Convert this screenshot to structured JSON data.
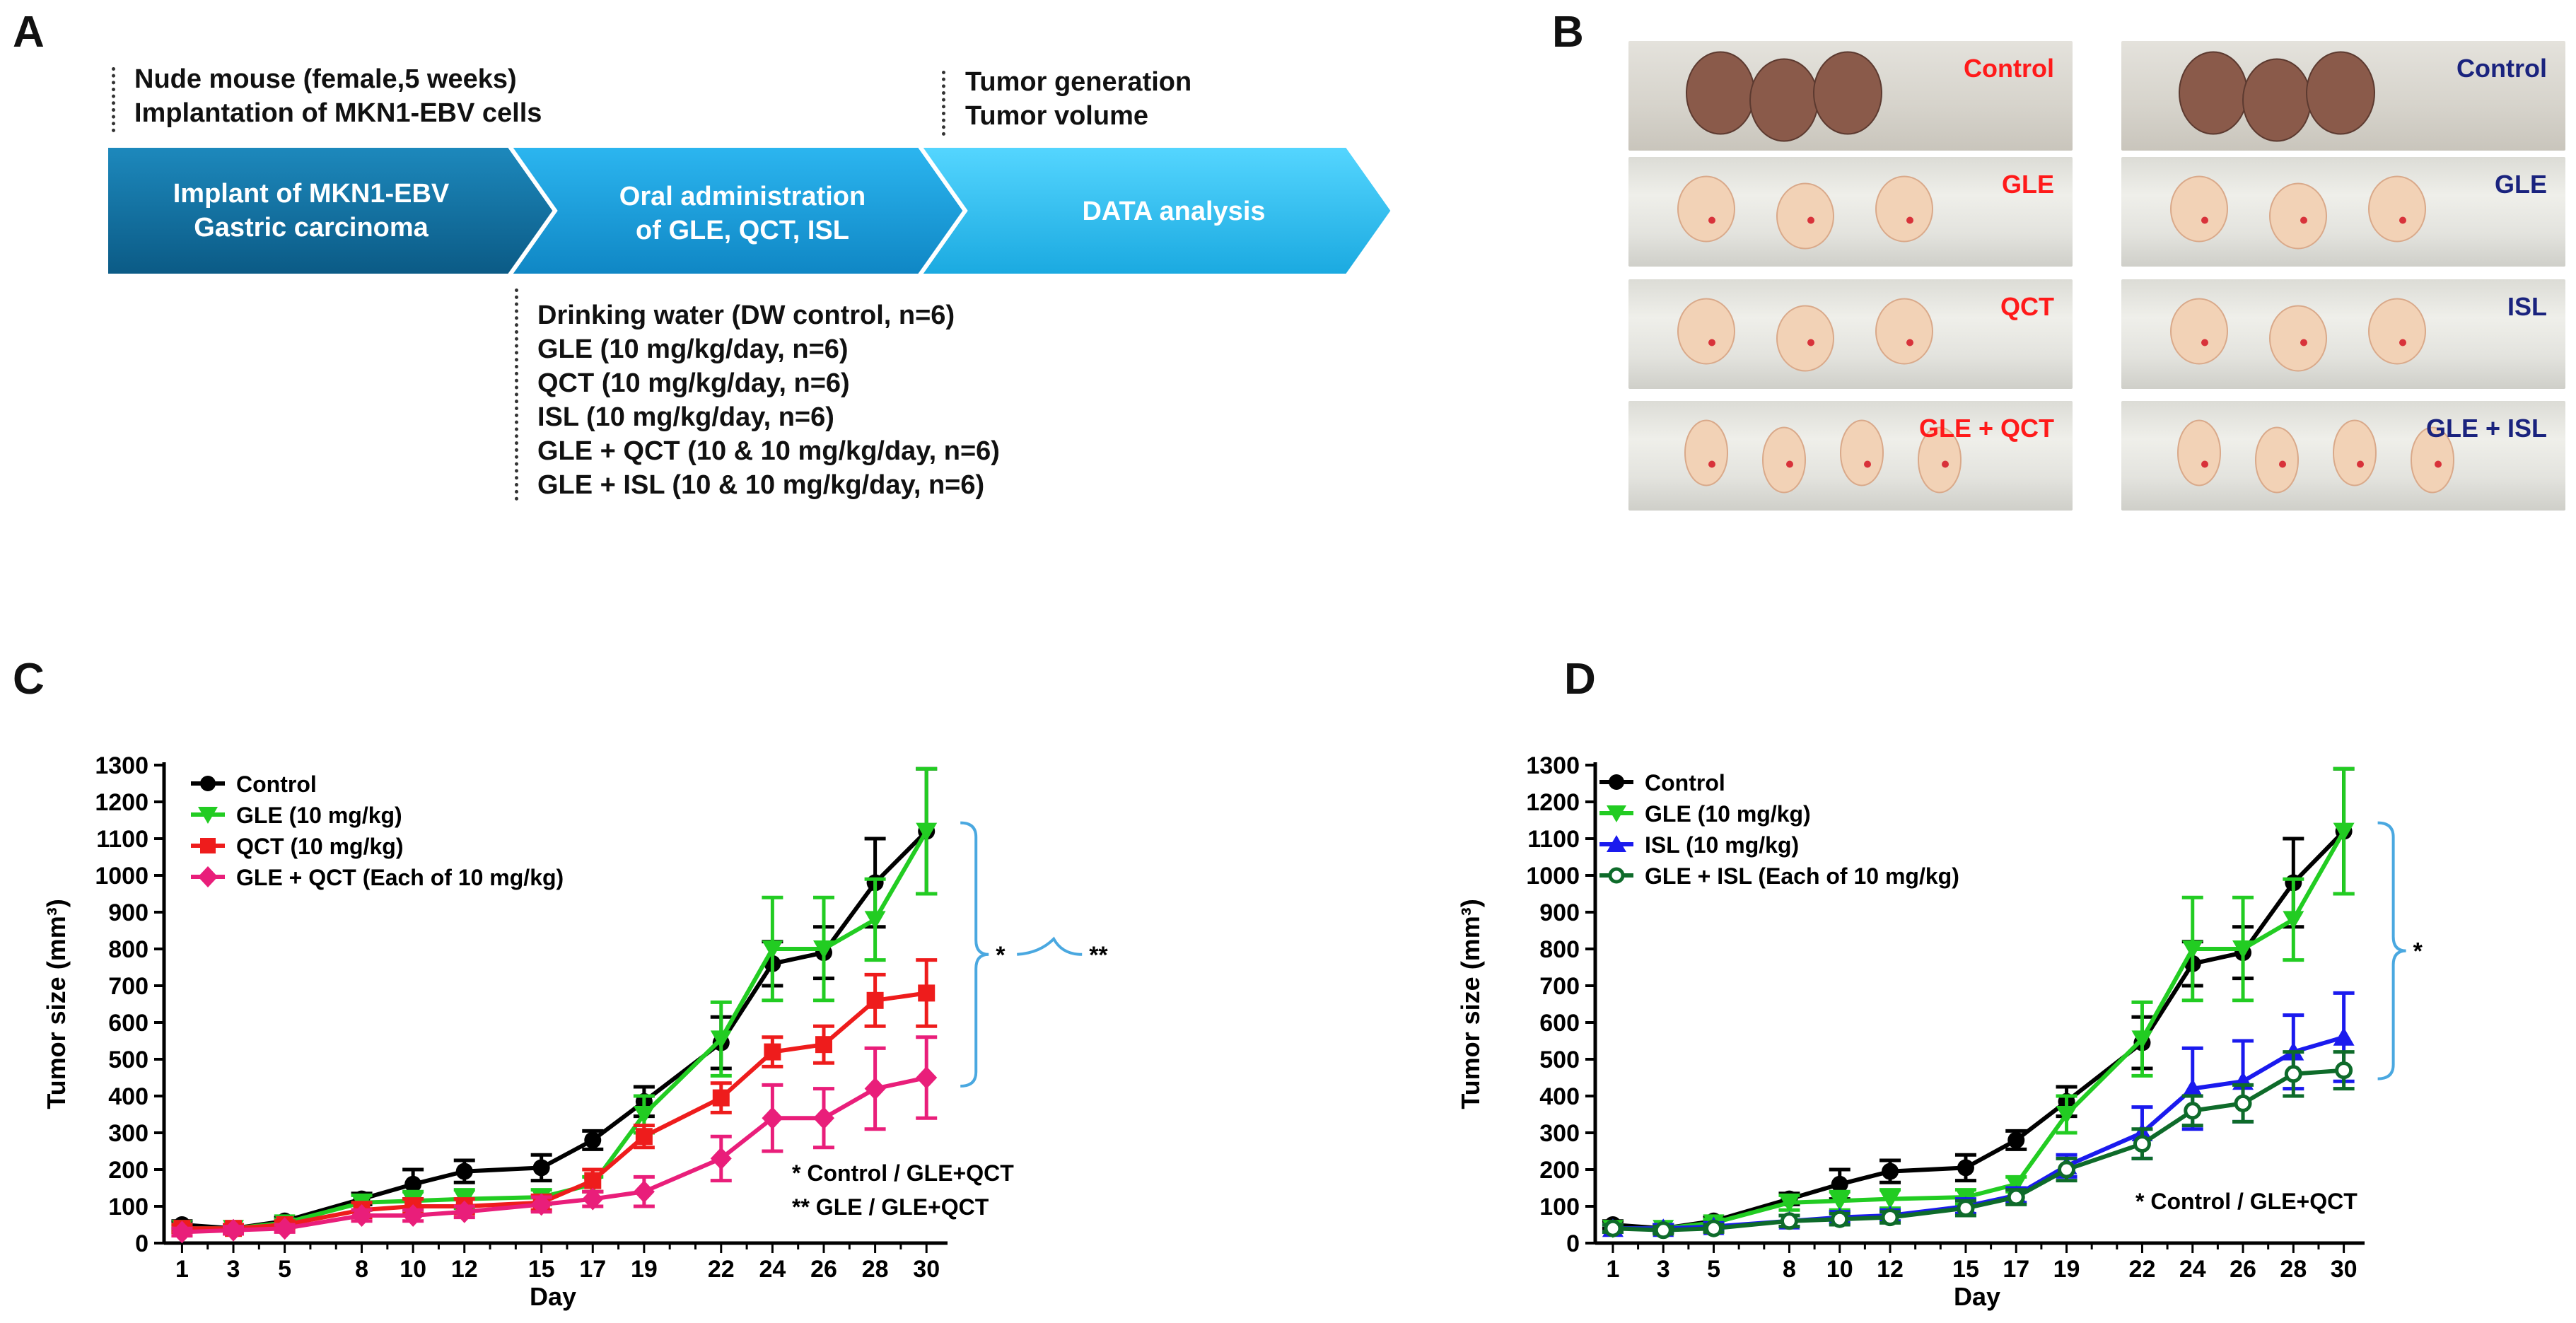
{
  "panels": {
    "a": "A",
    "b": "B",
    "c": "C",
    "d": "D"
  },
  "panel_a": {
    "top_left": [
      "Nude mouse (female,5 weeks)",
      "Implantation of MKN1-EBV cells"
    ],
    "top_right": [
      "Tumor generation",
      "Tumor volume"
    ],
    "steps": [
      {
        "line1": "Implant of MKN1-EBV",
        "line2": "Gastric carcinoma"
      },
      {
        "line1": "Oral administration",
        "line2": "of GLE, QCT, ISL"
      },
      {
        "line1": "DATA analysis",
        "line2": ""
      }
    ],
    "groups": [
      "Drinking water (DW control, n=6)",
      "GLE (10 mg/kg/day, n=6)",
      "QCT (10 mg/kg/day, n=6)",
      "ISL (10 mg/kg/day, n=6)",
      "GLE + QCT (10 & 10 mg/kg/day, n=6)",
      "GLE + ISL (10 & 10 mg/kg/day, n=6)"
    ],
    "colors": {
      "step1": "#0f6f9c",
      "step2": "#1a9fd8",
      "step3": "#2ec0ee"
    }
  },
  "panel_b": {
    "left": [
      {
        "label": "Control",
        "color": "#ff1a1a"
      },
      {
        "label": "GLE",
        "color": "#ff1a1a"
      },
      {
        "label": "QCT",
        "color": "#ff1a1a"
      },
      {
        "label": "GLE + QCT",
        "color": "#ff1a1a"
      }
    ],
    "right": [
      {
        "label": "Control",
        "color": "#1a237e"
      },
      {
        "label": "GLE",
        "color": "#1a237e"
      },
      {
        "label": "ISL",
        "color": "#1a237e"
      },
      {
        "label": "GLE + ISL",
        "color": "#1a237e"
      }
    ]
  },
  "chart_data": [
    {
      "id": "C",
      "type": "line",
      "xlabel": "Day",
      "ylabel": "Tumor size (mm³)",
      "x": [
        1,
        3,
        5,
        8,
        10,
        12,
        15,
        17,
        19,
        22,
        24,
        26,
        28,
        30
      ],
      "ylim": [
        0,
        1300
      ],
      "yticks": [
        0,
        100,
        200,
        300,
        400,
        500,
        600,
        700,
        800,
        900,
        1000,
        1100,
        1200,
        1300
      ],
      "series": [
        {
          "name": "Control",
          "color": "#000000",
          "marker": "circle",
          "values": [
            50,
            40,
            60,
            120,
            160,
            195,
            205,
            280,
            385,
            545,
            760,
            790,
            980,
            1120
          ],
          "errors": [
            10,
            10,
            10,
            15,
            40,
            30,
            35,
            25,
            40,
            70,
            60,
            70,
            120,
            170
          ]
        },
        {
          "name": "GLE (10 mg/kg)",
          "color": "#22cc22",
          "marker": "triangle-down",
          "values": [
            40,
            40,
            55,
            110,
            115,
            120,
            125,
            160,
            350,
            555,
            800,
            800,
            880,
            1120
          ],
          "errors": [
            10,
            10,
            10,
            20,
            25,
            25,
            20,
            20,
            50,
            100,
            140,
            140,
            110,
            170
          ]
        },
        {
          "name": "QCT (10 mg/kg)",
          "color": "#ee1c1c",
          "marker": "square",
          "values": [
            40,
            40,
            50,
            90,
            100,
            100,
            110,
            170,
            290,
            395,
            520,
            540,
            660,
            680
          ],
          "errors": [
            10,
            10,
            10,
            20,
            20,
            20,
            20,
            30,
            30,
            40,
            40,
            50,
            70,
            90
          ]
        },
        {
          "name": "GLE + QCT (Each of 10 mg/kg)",
          "color": "#e91e7a",
          "marker": "diamond",
          "values": [
            30,
            35,
            40,
            75,
            75,
            85,
            105,
            120,
            140,
            230,
            340,
            340,
            420,
            450
          ],
          "errors": [
            10,
            10,
            10,
            15,
            15,
            15,
            20,
            20,
            40,
            60,
            90,
            80,
            110,
            110
          ]
        }
      ],
      "annotations": {
        "bracket_inner": "*",
        "bracket_outer": "**",
        "notes": [
          "*  Control / GLE+QCT",
          "** GLE / GLE+QCT"
        ]
      }
    },
    {
      "id": "D",
      "type": "line",
      "xlabel": "Day",
      "ylabel": "Tumor size (mm³)",
      "x": [
        1,
        3,
        5,
        8,
        10,
        12,
        15,
        17,
        19,
        22,
        24,
        26,
        28,
        30
      ],
      "ylim": [
        0,
        1300
      ],
      "yticks": [
        0,
        100,
        200,
        300,
        400,
        500,
        600,
        700,
        800,
        900,
        1000,
        1100,
        1200,
        1300
      ],
      "series": [
        {
          "name": "Control",
          "color": "#000000",
          "marker": "circle",
          "values": [
            50,
            40,
            60,
            120,
            160,
            195,
            205,
            280,
            385,
            545,
            760,
            790,
            980,
            1120
          ],
          "errors": [
            10,
            10,
            10,
            15,
            40,
            30,
            35,
            25,
            40,
            70,
            60,
            70,
            120,
            170
          ]
        },
        {
          "name": "GLE (10 mg/kg)",
          "color": "#22cc22",
          "marker": "triangle-down",
          "values": [
            40,
            40,
            55,
            110,
            115,
            120,
            125,
            160,
            350,
            555,
            800,
            800,
            880,
            1120
          ],
          "errors": [
            10,
            10,
            10,
            20,
            25,
            25,
            20,
            20,
            50,
            100,
            140,
            140,
            110,
            170
          ]
        },
        {
          "name": "ISL (10 mg/kg)",
          "color": "#1a1aee",
          "marker": "triangle-up",
          "values": [
            40,
            40,
            45,
            60,
            70,
            75,
            100,
            130,
            210,
            300,
            420,
            440,
            520,
            560
          ],
          "errors": [
            10,
            10,
            10,
            15,
            15,
            15,
            20,
            20,
            30,
            70,
            110,
            110,
            100,
            120
          ]
        },
        {
          "name": "GLE + ISL (Each of 10 mg/kg)",
          "color": "#0e6b2a",
          "marker": "open-circle",
          "values": [
            40,
            35,
            40,
            60,
            65,
            70,
            95,
            125,
            200,
            270,
            360,
            380,
            460,
            470
          ],
          "errors": [
            10,
            10,
            10,
            15,
            15,
            15,
            20,
            20,
            30,
            40,
            40,
            50,
            60,
            50
          ]
        }
      ],
      "annotations": {
        "bracket_inner": "*",
        "notes": [
          "*  Control / GLE+QCT"
        ]
      }
    }
  ]
}
